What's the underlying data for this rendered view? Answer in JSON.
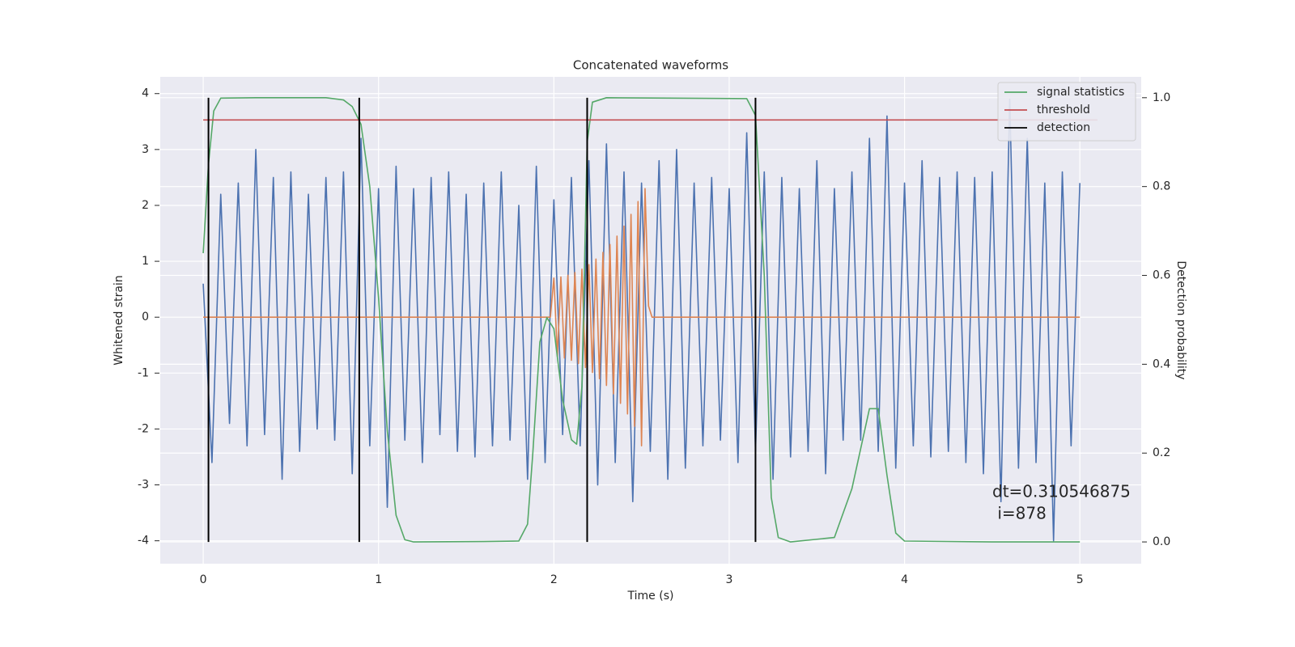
{
  "chart_data": {
    "type": "line",
    "title": "Concatenated waveforms",
    "x_label": "Time (s)",
    "y_label": "Whitened strain",
    "y2_label": "Detection probability",
    "xlim": [
      -0.245,
      5.35
    ],
    "xticks": [
      0,
      1,
      2,
      3,
      4,
      5
    ],
    "ylim": [
      -4.41,
      4.3
    ],
    "yticks": [
      -4,
      -3,
      -2,
      -1,
      0,
      1,
      2,
      3,
      4
    ],
    "y2lim": [
      -0.049,
      1.047
    ],
    "y2ticks": [
      {
        "value": 0,
        "label": "0.0"
      },
      {
        "value": 0.2,
        "label": "0.2"
      },
      {
        "value": 0.4,
        "label": "0.4"
      },
      {
        "value": 0.6,
        "label": "0.6"
      },
      {
        "value": 0.8,
        "label": "0.8"
      },
      {
        "value": 1,
        "label": "1.0"
      }
    ],
    "grid": true,
    "legend": "upper right",
    "background": "#eaeaf2",
    "annotations": [
      "dt=0.310546875",
      " i=878"
    ],
    "series": [
      {
        "color": "#4c72b0",
        "axis": "y",
        "x": [
          0,
          0.05,
          0.1,
          0.15,
          0.2,
          0.25,
          0.3,
          0.35,
          0.4,
          0.45,
          0.5,
          0.55,
          0.6,
          0.65,
          0.7,
          0.75,
          0.8,
          0.85,
          0.9,
          0.95,
          1,
          1.05,
          1.1,
          1.15,
          1.2,
          1.25,
          1.3,
          1.35,
          1.4,
          1.45,
          1.5,
          1.55,
          1.6,
          1.65,
          1.7,
          1.75,
          1.8,
          1.85,
          1.9,
          1.95,
          2,
          2.05,
          2.1,
          2.15,
          2.2,
          2.25,
          2.3,
          2.35,
          2.4,
          2.45,
          2.5,
          2.55,
          2.6,
          2.65,
          2.7,
          2.75,
          2.8,
          2.85,
          2.9,
          2.95,
          3,
          3.05,
          3.1,
          3.15,
          3.2,
          3.25,
          3.3,
          3.35,
          3.4,
          3.45,
          3.5,
          3.55,
          3.6,
          3.65,
          3.7,
          3.75,
          3.8,
          3.85,
          3.9,
          3.95,
          4,
          4.05,
          4.1,
          4.15,
          4.2,
          4.25,
          4.3,
          4.35,
          4.4,
          4.45,
          4.5,
          4.55,
          4.6,
          4.65,
          4.7,
          4.75,
          4.8,
          4.85,
          4.9,
          4.95,
          5
        ],
        "values": [
          0.6,
          -2.6,
          2.2,
          -1.9,
          2.4,
          -2.3,
          3.0,
          -2.1,
          2.5,
          -2.9,
          2.6,
          -2.4,
          2.2,
          -2.0,
          2.5,
          -2.2,
          2.6,
          -2.8,
          3.2,
          -2.3,
          2.3,
          -3.4,
          2.7,
          -2.2,
          2.3,
          -2.6,
          2.5,
          -2.1,
          2.6,
          -2.4,
          2.2,
          -2.5,
          2.4,
          -2.3,
          2.6,
          -2.2,
          2.0,
          -2.9,
          2.7,
          -2.6,
          2.1,
          -2.1,
          2.5,
          -2.3,
          2.8,
          -3.0,
          3.1,
          -2.6,
          2.6,
          -3.3,
          2.4,
          -2.4,
          2.8,
          -2.9,
          3.0,
          -2.7,
          2.4,
          -2.3,
          2.5,
          -2.2,
          2.3,
          -2.6,
          3.3,
          -2.4,
          2.6,
          -2.9,
          2.5,
          -2.5,
          2.3,
          -2.4,
          2.8,
          -2.8,
          2.3,
          -2.2,
          2.6,
          -2.2,
          3.2,
          -2.4,
          3.6,
          -2.7,
          2.4,
          -2.3,
          2.8,
          -2.5,
          2.5,
          -2.4,
          2.6,
          -2.6,
          2.5,
          -2.8,
          2.6,
          -3.3,
          3.9,
          -2.7,
          3.2,
          -2.6,
          2.4,
          -4.0,
          2.6,
          -2.3,
          2.4
        ]
      },
      {
        "color": "#dd8452",
        "axis": "y",
        "x": [
          0,
          1.98,
          2.0,
          2.02,
          2.04,
          2.06,
          2.08,
          2.1,
          2.12,
          2.14,
          2.16,
          2.18,
          2.2,
          2.22,
          2.24,
          2.26,
          2.28,
          2.3,
          2.32,
          2.34,
          2.36,
          2.38,
          2.4,
          2.42,
          2.44,
          2.46,
          2.48,
          2.5,
          2.52,
          2.54,
          2.56,
          5
        ],
        "values": [
          0,
          0,
          0.7,
          -0.7,
          0.72,
          -0.73,
          0.75,
          -0.77,
          0.8,
          -0.83,
          0.86,
          -0.9,
          0.94,
          -0.99,
          1.04,
          -1.1,
          1.16,
          -1.22,
          1.3,
          -1.37,
          1.45,
          -1.54,
          1.63,
          -1.73,
          1.84,
          -1.95,
          2.07,
          -2.3,
          2.3,
          0.2,
          0,
          0
        ]
      },
      {
        "name": "signal statistics",
        "color": "#55a868",
        "axis": "y2",
        "x": [
          0,
          0.03,
          0.06,
          0.1,
          0.3,
          0.7,
          0.8,
          0.85,
          0.9,
          0.95,
          1.0,
          1.05,
          1.1,
          1.15,
          1.2,
          1.6,
          1.8,
          1.85,
          1.88,
          1.92,
          1.96,
          2.0,
          2.05,
          2.1,
          2.13,
          2.16,
          2.19,
          2.22,
          2.3,
          3.1,
          3.15,
          3.2,
          3.24,
          3.28,
          3.35,
          3.6,
          3.7,
          3.8,
          3.85,
          3.9,
          3.95,
          4.0,
          4.5,
          5.0
        ],
        "values": [
          0.65,
          0.85,
          0.97,
          0.999,
          1.0,
          1.0,
          0.995,
          0.98,
          0.94,
          0.8,
          0.55,
          0.25,
          0.06,
          0.005,
          0.0,
          0.001,
          0.002,
          0.04,
          0.2,
          0.45,
          0.505,
          0.48,
          0.32,
          0.23,
          0.22,
          0.35,
          0.9,
          0.99,
          1.0,
          0.998,
          0.96,
          0.6,
          0.1,
          0.01,
          0.0,
          0.01,
          0.12,
          0.3,
          0.3,
          0.15,
          0.02,
          0.002,
          0.0,
          0.0
        ]
      },
      {
        "name": "threshold",
        "color": "#c44e52",
        "axis": "y2",
        "x": [
          0,
          5.1
        ],
        "values": [
          0.95,
          0.95
        ]
      },
      {
        "name": "detection",
        "color": "#000000",
        "axis": "y2",
        "kind": "vlines",
        "x": [
          0.03,
          0.89,
          2.19,
          3.15
        ],
        "ymin": 0,
        "ymax": 1
      }
    ]
  }
}
